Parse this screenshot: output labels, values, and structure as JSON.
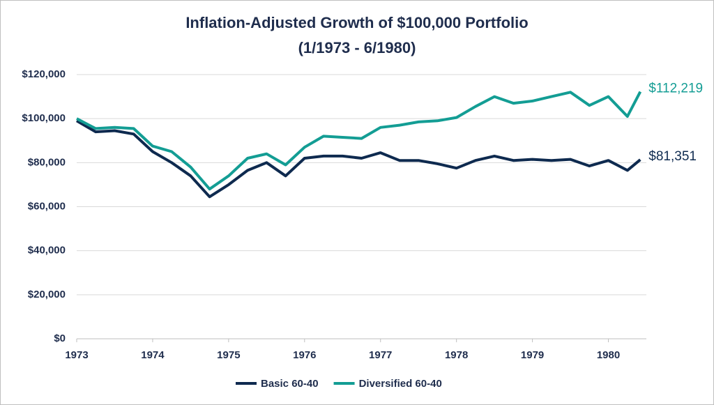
{
  "chart_data": {
    "type": "line",
    "title": "Inflation-Adjusted Growth of $100,000 Portfolio",
    "subtitle": "(1/1973 - 6/1980)",
    "x": [
      1973,
      1973.25,
      1973.5,
      1973.75,
      1974,
      1974.25,
      1974.5,
      1974.75,
      1975,
      1975.25,
      1975.5,
      1975.75,
      1976,
      1976.25,
      1976.5,
      1976.75,
      1977,
      1977.25,
      1977.5,
      1977.75,
      1978,
      1978.25,
      1978.5,
      1978.75,
      1979,
      1979.25,
      1979.5,
      1979.75,
      1980,
      1980.25,
      1980.42
    ],
    "series": [
      {
        "name": "Basic 60-40",
        "color": "#0e2a4f",
        "end_label": "$81,351",
        "values": [
          99000,
          94000,
          94500,
          93000,
          85000,
          80000,
          74000,
          64500,
          70000,
          76500,
          80000,
          74000,
          82000,
          83000,
          83000,
          82000,
          84500,
          81000,
          81000,
          79500,
          77500,
          81000,
          83000,
          81000,
          81500,
          81000,
          81500,
          78500,
          81000,
          76500,
          81351
        ]
      },
      {
        "name": "Diversified 60-40",
        "color": "#139d94",
        "end_label": "$112,219",
        "values": [
          100000,
          95500,
          96000,
          95500,
          87500,
          85000,
          78000,
          68000,
          74000,
          82000,
          84000,
          79000,
          87000,
          92000,
          91500,
          91000,
          96000,
          97000,
          98500,
          99000,
          100500,
          105500,
          110000,
          107000,
          108000,
          110000,
          112000,
          106000,
          110000,
          101000,
          112219
        ]
      }
    ],
    "xlim": [
      1973,
      1980.5
    ],
    "xticks": [
      1973,
      1974,
      1975,
      1976,
      1977,
      1978,
      1979,
      1980
    ],
    "ylim": [
      0,
      120000
    ],
    "yticks": [
      {
        "value": 0,
        "label": "$0"
      },
      {
        "value": 20000,
        "label": "$20,000"
      },
      {
        "value": 40000,
        "label": "$40,000"
      },
      {
        "value": 60000,
        "label": "$60,000"
      },
      {
        "value": 80000,
        "label": "$80,000"
      },
      {
        "value": 100000,
        "label": "$100,000"
      },
      {
        "value": 120000,
        "label": "$120,000"
      }
    ],
    "grid": true,
    "legend": "bottom"
  }
}
